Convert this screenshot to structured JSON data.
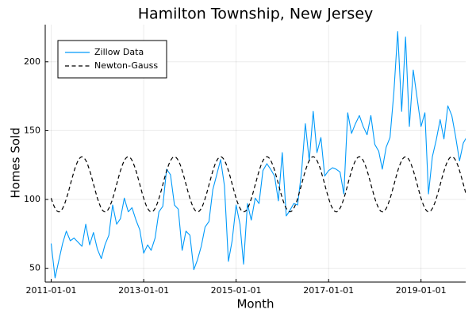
{
  "chart_data": {
    "type": "line",
    "title": "Hamilton Township, New Jersey",
    "xlabel": "Month",
    "ylabel": "Homes Sold",
    "x_ticks": [
      "2011-01-01",
      "2013-01-01",
      "2015-01-01",
      "2017-01-01",
      "2019-01-01"
    ],
    "y_ticks": [
      50,
      100,
      150,
      200
    ],
    "xlim": [
      "2010-11-15",
      "2019-12-20"
    ],
    "ylim": [
      40,
      227
    ],
    "grid": true,
    "legend_position": "top-left",
    "series": [
      {
        "name": "Zillow Data",
        "color": "#009AFA",
        "style": "solid",
        "start": "2011-01-01",
        "frequency": "monthly",
        "values": [
          68,
          43,
          55,
          68,
          77,
          70,
          72,
          69,
          66,
          82,
          67,
          76,
          64,
          57,
          67,
          74,
          96,
          82,
          86,
          101,
          91,
          94,
          85,
          78,
          61,
          67,
          63,
          72,
          91,
          95,
          122,
          118,
          96,
          93,
          63,
          77,
          74,
          49,
          56,
          66,
          80,
          84,
          107,
          118,
          129,
          110,
          55,
          70,
          96,
          82,
          53,
          97,
          85,
          101,
          97,
          121,
          126,
          122,
          117,
          99,
          134,
          88,
          92,
          97,
          96,
          120,
          155,
          128,
          164,
          134,
          145,
          117,
          121,
          123,
          122,
          120,
          104,
          163,
          148,
          155,
          161,
          153,
          147,
          161,
          140,
          135,
          122,
          138,
          145,
          178,
          222,
          164,
          218,
          153,
          194,
          174,
          153,
          163,
          104,
          131,
          143,
          158,
          144,
          168,
          161,
          146,
          128,
          141,
          146,
          135
        ]
      },
      {
        "name": "Newton-Gauss",
        "color": "#000000",
        "style": "dashed",
        "model": "seasonal sine fit",
        "mean": 111,
        "amplitude": 20,
        "period_months": 12,
        "peak_month": 8
      }
    ]
  }
}
